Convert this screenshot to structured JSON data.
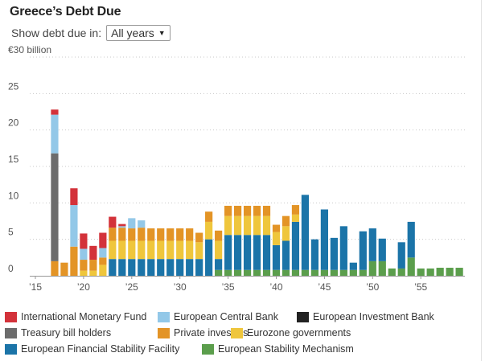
{
  "title": "Greece’s Debt Due",
  "filter": {
    "label": "Show debt due in:",
    "selected": "All years"
  },
  "colors": {
    "imf": "#d3323a",
    "ecb": "#93c8e8",
    "eib": "#222222",
    "tbill": "#6c6c6c",
    "private": "#e39426",
    "eurozone": "#efc63c",
    "efsf": "#1b74a8",
    "esm": "#5b9e4c"
  },
  "legend": [
    {
      "key": "imf",
      "label": "International Monetary Fund"
    },
    {
      "key": "ecb",
      "label": "European Central Bank"
    },
    {
      "key": "eib",
      "label": "European Investment Bank"
    },
    {
      "key": "tbill",
      "label": "Treasury bill holders"
    },
    {
      "key": "private",
      "label": "Private investors"
    },
    {
      "key": "eurozone",
      "label": "Eurozone governments"
    },
    {
      "key": "efsf",
      "label": "European Financial Stability Facility"
    },
    {
      "key": "esm",
      "label": "European Stability Mechanism"
    }
  ],
  "chart_data": {
    "type": "bar",
    "stacked": true,
    "x": [
      2015,
      2016,
      2017,
      2018,
      2019,
      2020,
      2021,
      2022,
      2023,
      2024,
      2025,
      2026,
      2027,
      2028,
      2029,
      2030,
      2031,
      2032,
      2033,
      2034,
      2035,
      2036,
      2037,
      2038,
      2039,
      2040,
      2041,
      2042,
      2043,
      2044,
      2045,
      2046,
      2047,
      2048,
      2049,
      2050,
      2051,
      2052,
      2053,
      2054,
      2055,
      2056,
      2057,
      2058,
      2059
    ],
    "ylim": [
      0,
      30
    ],
    "y_ticks": [
      0,
      5,
      10,
      15,
      20,
      25,
      30
    ],
    "y_tick_labels": [
      "0",
      "5",
      "10",
      "15",
      "20",
      "25",
      "€30 billion"
    ],
    "x_ticks": [
      2015,
      2020,
      2025,
      2030,
      2035,
      2040,
      2045,
      2050,
      2055
    ],
    "x_tick_labels": [
      "’15",
      "’20",
      "’25",
      "’30",
      "’35",
      "’40",
      "’45",
      "’50",
      "’55"
    ],
    "grid": "horizontal-dotted",
    "legend_position": "bottom",
    "series": [
      {
        "key": "esm",
        "name": "European Stability Mechanism",
        "values": [
          0,
          0,
          0,
          0,
          0,
          0,
          0,
          0,
          0,
          0,
          0,
          0,
          0,
          0,
          0,
          0,
          0,
          0,
          0,
          0.8,
          0.8,
          0.8,
          0.8,
          0.8,
          0.8,
          0.8,
          0.8,
          0.8,
          0.8,
          0.8,
          0.8,
          0.8,
          0.8,
          0.8,
          0.8,
          2.0,
          2.0,
          1.0,
          1.0,
          2.5,
          1.0,
          1.0,
          1.1,
          1.1,
          1.1
        ]
      },
      {
        "key": "efsf",
        "name": "European Financial Stability Facility",
        "values": [
          0,
          0,
          0,
          0,
          0,
          0,
          0,
          0,
          2.3,
          2.3,
          2.3,
          2.3,
          2.3,
          2.3,
          2.3,
          2.3,
          2.3,
          2.3,
          5.0,
          1.5,
          4.8,
          4.8,
          4.8,
          4.8,
          4.8,
          3.4,
          4.0,
          6.6,
          10.3,
          4.2,
          8.3,
          4.4,
          6.0,
          1.0,
          5.3,
          4.5,
          3.1,
          0,
          3.6,
          4.9,
          0,
          0,
          0,
          0,
          0
        ]
      },
      {
        "key": "eurozone",
        "name": "Eurozone governments",
        "values": [
          0,
          0,
          0,
          0,
          0,
          0.7,
          0.7,
          1.5,
          2.5,
          2.5,
          2.5,
          2.5,
          2.5,
          2.5,
          2.5,
          2.5,
          2.5,
          2.3,
          2.4,
          2.5,
          2.6,
          2.6,
          2.6,
          2.6,
          2.6,
          1.8,
          2.0,
          1.0,
          0,
          0,
          0,
          0,
          0,
          0,
          0,
          0,
          0,
          0,
          0,
          0,
          0,
          0,
          0,
          0,
          0
        ]
      },
      {
        "key": "private",
        "name": "Private investors",
        "values": [
          0,
          0,
          2.0,
          1.8,
          4.0,
          1.5,
          1.5,
          1.0,
          1.8,
          1.8,
          1.7,
          1.8,
          1.7,
          1.7,
          1.7,
          1.7,
          1.7,
          1.3,
          1.4,
          1.4,
          1.4,
          1.4,
          1.4,
          1.4,
          1.4,
          1.0,
          1.4,
          1.3,
          0,
          0,
          0,
          0,
          0,
          0,
          0,
          0,
          0,
          0,
          0,
          0,
          0,
          0,
          0,
          0,
          0
        ]
      },
      {
        "key": "tbill",
        "name": "Treasury bill holders",
        "values": [
          0,
          0,
          14.8,
          0,
          0,
          0,
          0,
          0,
          0,
          0,
          0,
          0,
          0,
          0,
          0,
          0,
          0,
          0,
          0,
          0,
          0,
          0,
          0,
          0,
          0,
          0,
          0,
          0,
          0,
          0,
          0,
          0,
          0,
          0,
          0,
          0,
          0,
          0,
          0,
          0,
          0,
          0,
          0,
          0,
          0
        ]
      },
      {
        "key": "eib",
        "name": "European Investment Bank",
        "values": [
          0,
          0,
          0,
          0,
          0,
          0,
          0,
          0,
          0,
          0,
          0,
          0,
          0,
          0,
          0,
          0,
          0,
          0,
          0,
          0,
          0,
          0,
          0,
          0,
          0,
          0,
          0,
          0,
          0,
          0,
          0,
          0,
          0,
          0,
          0,
          0,
          0,
          0,
          0,
          0,
          0,
          0,
          0,
          0,
          0
        ]
      },
      {
        "key": "ecb",
        "name": "European Central Bank",
        "values": [
          0,
          0,
          5.3,
          0,
          5.7,
          1.5,
          0,
          1.3,
          0,
          0.2,
          1.4,
          1.0,
          0,
          0,
          0,
          0,
          0,
          0,
          0,
          0,
          0,
          0,
          0,
          0,
          0,
          0,
          0,
          0,
          0,
          0,
          0,
          0,
          0,
          0,
          0,
          0,
          0,
          0,
          0,
          0,
          0,
          0,
          0,
          0,
          0
        ]
      },
      {
        "key": "imf",
        "name": "International Monetary Fund",
        "values": [
          0,
          0,
          0.7,
          0,
          2.3,
          2.1,
          1.9,
          2.1,
          1.5,
          0.3,
          0,
          0,
          0,
          0,
          0,
          0,
          0,
          0,
          0,
          0,
          0,
          0,
          0,
          0,
          0,
          0,
          0,
          0,
          0,
          0,
          0,
          0,
          0,
          0,
          0,
          0,
          0,
          0,
          0,
          0,
          0,
          0,
          0,
          0,
          0
        ]
      }
    ]
  }
}
